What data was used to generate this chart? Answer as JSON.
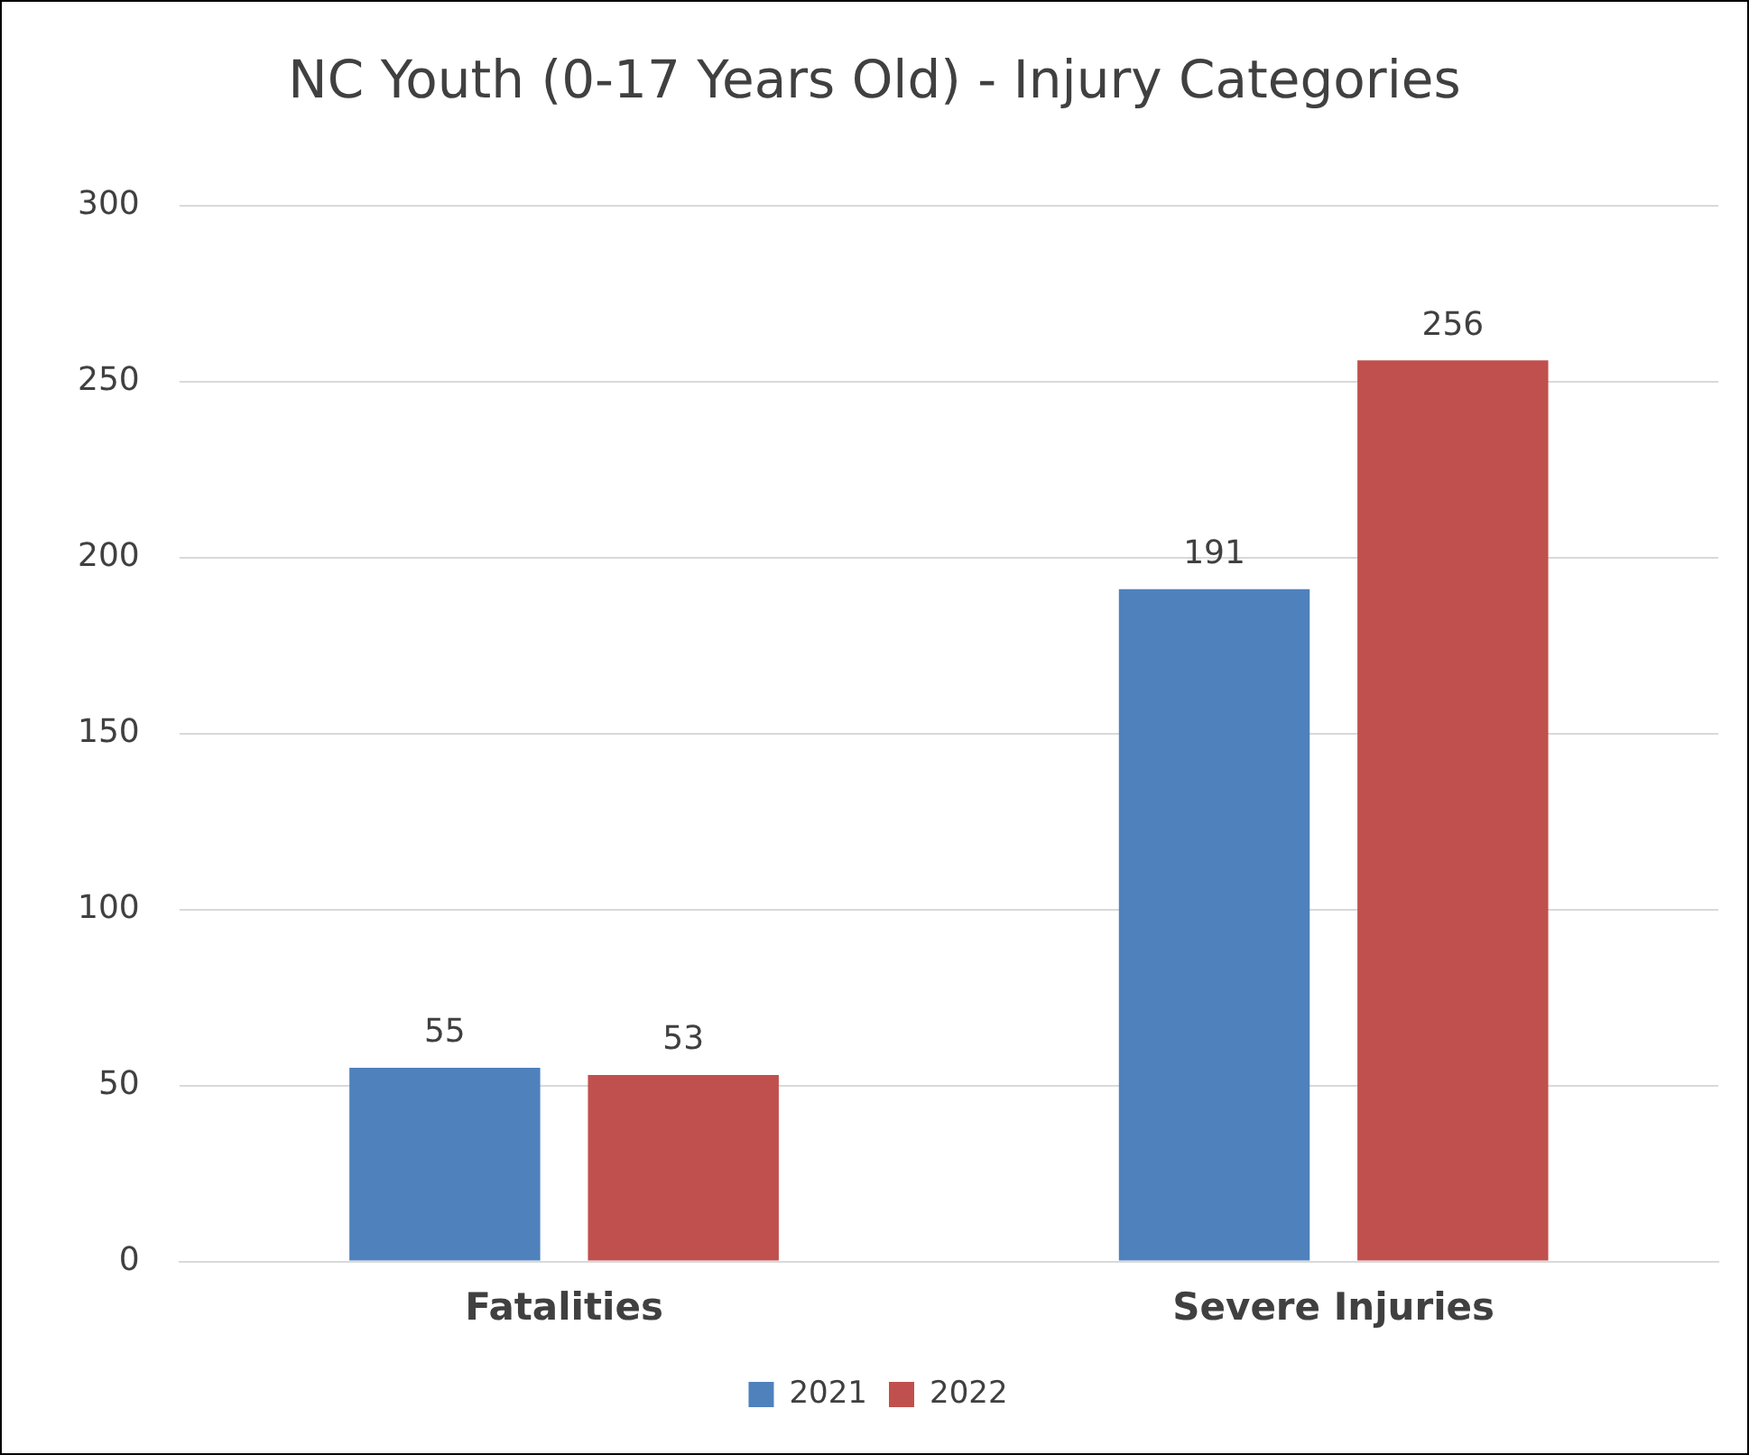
{
  "chart_data": {
    "type": "bar",
    "title": "NC Youth (0-17 Years Old) - Injury Categories",
    "categories": [
      "Fatalities",
      "Severe Injuries"
    ],
    "series": [
      {
        "name": "2021",
        "color": "#4f81bd",
        "values": [
          55,
          191
        ]
      },
      {
        "name": "2022",
        "color": "#c0504d",
        "values": [
          53,
          256
        ]
      }
    ],
    "ylim": [
      0,
      300
    ],
    "yticks": [
      0,
      50,
      100,
      150,
      200,
      250,
      300
    ],
    "grid": "y",
    "legend": "bottom",
    "data_labels": true
  }
}
